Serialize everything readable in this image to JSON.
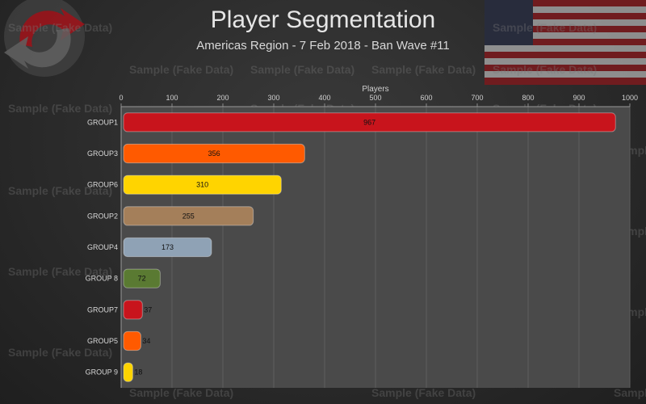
{
  "title": "Player Segmentation",
  "subtitle": "Americas Region -  7 Feb 2018 - Ban Wave #11",
  "watermark_text": "Sample (Fake Data)",
  "chart_data": {
    "type": "bar",
    "orientation": "horizontal",
    "xlabel": "Players",
    "xlabel_position": "top",
    "xlim": [
      0,
      1000
    ],
    "xticks": [
      0,
      100,
      200,
      300,
      400,
      500,
      600,
      700,
      800,
      900,
      1000
    ],
    "grid": true,
    "categories": [
      "GROUP1",
      "GROUP3",
      "GROUP6",
      "GROUP2",
      "GROUP4",
      "GROUP 8",
      "GROUP7",
      "GROUP5",
      "GROUP 9"
    ],
    "values": [
      967,
      356,
      310,
      255,
      173,
      72,
      37,
      34,
      18
    ],
    "bar_colors": [
      "#c8141c",
      "#ff5a00",
      "#ffd400",
      "#a47f5a",
      "#8fa2b5",
      "#5a7a32",
      "#c8141c",
      "#ff5a00",
      "#ffd400"
    ],
    "plot_background": "#4a4a4a"
  }
}
